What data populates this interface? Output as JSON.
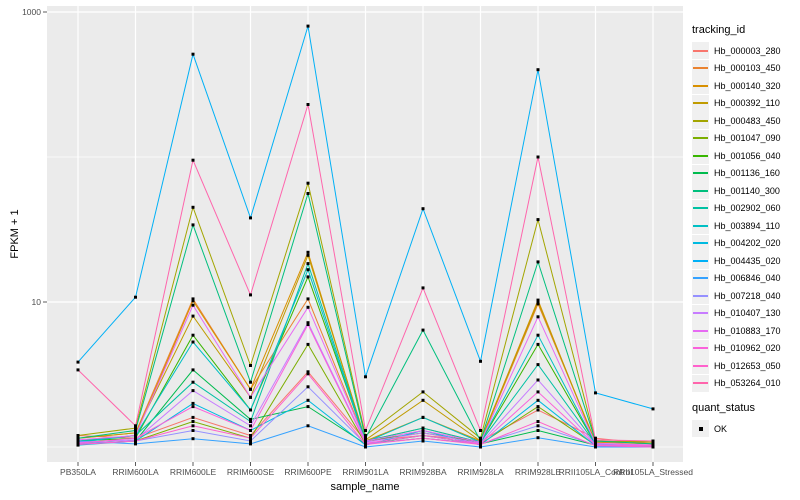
{
  "chart_data": {
    "type": "line",
    "title": "",
    "xlabel": "sample_name",
    "ylabel": "FPKM + 1",
    "y_scale": "log10",
    "ylim": [
      0.9,
      1200
    ],
    "y_tick_labels": [
      "1000",
      "10"
    ],
    "y_tick_values": [
      1000,
      10
    ],
    "gridlines_y_major": [
      10,
      1000
    ],
    "gridlines_y_minor": [
      1,
      100
    ],
    "grid": "on",
    "legend": {
      "title": "tracking_id",
      "position": "right"
    },
    "quant_status": {
      "title": "quant_status",
      "entries": [
        {
          "label": "OK",
          "shape": "square",
          "color": "#000000"
        }
      ]
    },
    "style": {
      "panel_bg": "#EBEBEB",
      "gridline_color": "#FFFFFF",
      "point_color": "#000000",
      "tick_color": "#333333",
      "tick_label_color": "#4D4D4D",
      "legend_key_bg": "#F0F0F0"
    },
    "categories": [
      "PB350LA",
      "RRIM600LA",
      "RRIM600LE",
      "RRIM600SE",
      "RRIM600PE",
      "RRIM901LA",
      "RRIM928BA",
      "RRIM928LA",
      "RRIM928LE",
      "RRII105LA_Control",
      "RRII105LA_Stressed"
    ],
    "series": [
      {
        "name": "Hb_000003_280",
        "color": "#F8766D",
        "values": [
          1.2,
          1.15,
          1.6,
          1.2,
          3.3,
          1.1,
          1.2,
          1.1,
          1.8,
          1.15,
          1.05
        ]
      },
      {
        "name": "Hb_000103_450",
        "color": "#EA8331",
        "values": [
          1.15,
          1.25,
          10.5,
          2.5,
          10.5,
          1.1,
          1.35,
          1.08,
          9.7,
          1.08,
          1.05
        ]
      },
      {
        "name": "Hb_000140_320",
        "color": "#D89000",
        "values": [
          1.1,
          1.2,
          10.2,
          2.5,
          22,
          1.1,
          1.6,
          1.1,
          10.3,
          1.05,
          1.03
        ]
      },
      {
        "name": "Hb_000392_110",
        "color": "#C09B00",
        "values": [
          1.15,
          1.25,
          8.0,
          2.2,
          21,
          1.12,
          2.1,
          1.1,
          10.0,
          1.08,
          1.1
        ]
      },
      {
        "name": "Hb_000483_450",
        "color": "#A3A500",
        "values": [
          1.2,
          1.35,
          45,
          3.65,
          66,
          1.2,
          2.4,
          1.15,
          37,
          1.1,
          1.08
        ]
      },
      {
        "name": "Hb_001047_090",
        "color": "#7CAE00",
        "values": [
          1.05,
          1.1,
          1.5,
          1.15,
          5.1,
          1.05,
          1.15,
          1.05,
          1.9,
          1.03,
          1.02
        ]
      },
      {
        "name": "Hb_001056_040",
        "color": "#39B600",
        "values": [
          1.1,
          1.15,
          5.9,
          1.8,
          14.9,
          1.1,
          1.25,
          1.08,
          5.1,
          1.05,
          1.02
        ]
      },
      {
        "name": "Hb_001136_160",
        "color": "#00BB4E",
        "values": [
          1.05,
          1.1,
          3.4,
          1.55,
          1.9,
          1.05,
          1.2,
          1.05,
          1.3,
          1.03,
          1.0
        ]
      },
      {
        "name": "Hb_001140_300",
        "color": "#00BF7D",
        "values": [
          1.15,
          1.3,
          34,
          2.8,
          56,
          1.15,
          6.4,
          1.1,
          18.9,
          1.1,
          1.05
        ]
      },
      {
        "name": "Hb_002902_060",
        "color": "#00C1A3",
        "values": [
          1.1,
          1.2,
          2.8,
          1.5,
          18.4,
          1.1,
          1.35,
          1.08,
          3.7,
          1.05,
          1.02
        ]
      },
      {
        "name": "Hb_003894_110",
        "color": "#00BFC4",
        "values": [
          1.08,
          1.2,
          5.3,
          1.8,
          16.7,
          1.08,
          1.6,
          1.08,
          5.9,
          1.05,
          1.02
        ]
      },
      {
        "name": "Hb_004202_020",
        "color": "#00BAE0",
        "values": [
          1.03,
          1.1,
          2.0,
          1.3,
          2.1,
          1.03,
          1.3,
          1.03,
          2.1,
          1.02,
          1.0
        ]
      },
      {
        "name": "Hb_004435_020",
        "color": "#00B0F6",
        "values": [
          3.85,
          10.8,
          512,
          38,
          800,
          3.05,
          44,
          3.9,
          400,
          2.36,
          1.83
        ]
      },
      {
        "name": "Hb_006846_040",
        "color": "#35A2FF",
        "values": [
          1.1,
          1.05,
          1.14,
          1.05,
          1.4,
          1.0,
          1.1,
          1.0,
          1.16,
          1.0,
          1.0
        ]
      },
      {
        "name": "Hb_007218_040",
        "color": "#9590FF",
        "values": [
          1.05,
          1.1,
          1.3,
          1.1,
          2.6,
          1.05,
          1.15,
          1.05,
          1.4,
          1.03,
          1.0
        ]
      },
      {
        "name": "Hb_010407_130",
        "color": "#C77CFF",
        "values": [
          1.08,
          1.12,
          2.45,
          1.4,
          7.2,
          1.08,
          1.25,
          1.06,
          2.9,
          1.04,
          1.02
        ]
      },
      {
        "name": "Hb_010883_170",
        "color": "#E76BF3",
        "values": [
          1.12,
          1.2,
          9.5,
          2.2,
          9.2,
          1.1,
          1.3,
          1.08,
          7.9,
          1.06,
          1.03
        ]
      },
      {
        "name": "Hb_010962_020",
        "color": "#FA62DB",
        "values": [
          1.06,
          1.15,
          1.9,
          1.3,
          7.0,
          1.06,
          1.2,
          1.05,
          2.4,
          1.03,
          1.02
        ]
      },
      {
        "name": "Hb_012653_050",
        "color": "#FF61CC",
        "values": [
          1.04,
          1.1,
          1.4,
          1.15,
          3.2,
          1.04,
          1.15,
          1.04,
          1.5,
          1.02,
          1.0
        ]
      },
      {
        "name": "Hb_053264_010",
        "color": "#FF65AC",
        "values": [
          3.4,
          1.4,
          95,
          11.2,
          230,
          1.3,
          12.5,
          1.3,
          100,
          1.12,
          1.1
        ]
      }
    ]
  }
}
